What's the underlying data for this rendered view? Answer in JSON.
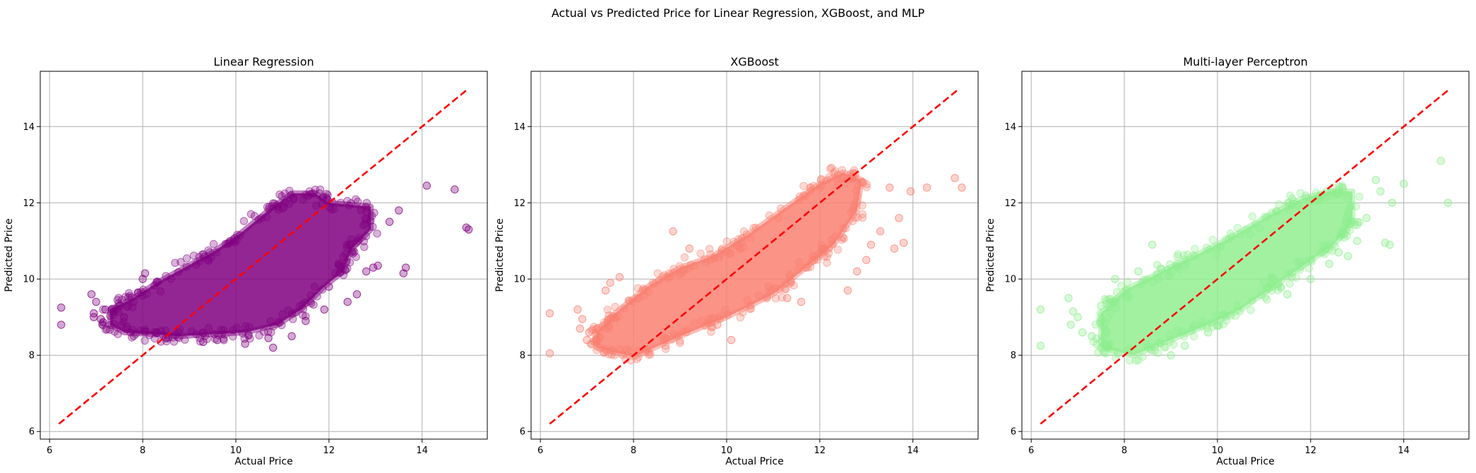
{
  "figure": {
    "suptitle": "Actual vs Predicted Price for Linear Regression, XGBoost, and MLP"
  },
  "chart_data": [
    {
      "type": "scatter",
      "title": "Linear Regression",
      "xlabel": "Actual Price",
      "ylabel": "Predicted Price",
      "xlim": [
        5.8,
        15.4
      ],
      "ylim": [
        5.8,
        15.45
      ],
      "xticks": [
        6,
        8,
        10,
        12,
        14
      ],
      "yticks": [
        6,
        8,
        10,
        12,
        14
      ],
      "grid": true,
      "point_color": "#800080",
      "reference_line": {
        "x": [
          6.2,
          15.0
        ],
        "y": [
          6.2,
          15.0
        ],
        "color": "#ff0000",
        "style": "dashed"
      },
      "cloud": [
        [
          7.3,
          8.8
        ],
        [
          7.6,
          8.6
        ],
        [
          8.2,
          8.55
        ],
        [
          8.8,
          8.5
        ],
        [
          9.5,
          8.55
        ],
        [
          10.2,
          8.6
        ],
        [
          10.9,
          8.8
        ],
        [
          11.4,
          9.2
        ],
        [
          11.9,
          9.8
        ],
        [
          12.3,
          10.2
        ],
        [
          12.5,
          10.8
        ],
        [
          12.9,
          11.3
        ],
        [
          12.9,
          11.9
        ],
        [
          12.0,
          12.0
        ],
        [
          11.7,
          12.25
        ],
        [
          11.2,
          12.25
        ],
        [
          10.7,
          11.8
        ],
        [
          10.1,
          11.2
        ],
        [
          9.5,
          10.7
        ],
        [
          8.9,
          10.3
        ],
        [
          8.3,
          9.9
        ],
        [
          7.8,
          9.5
        ],
        [
          7.3,
          9.2
        ]
      ],
      "points": [
        [
          6.25,
          9.25
        ],
        [
          6.25,
          8.8
        ],
        [
          6.9,
          9.6
        ],
        [
          6.95,
          9.1
        ],
        [
          6.95,
          9.0
        ],
        [
          7.0,
          9.4
        ],
        [
          7.1,
          8.95
        ],
        [
          7.2,
          9.2
        ],
        [
          7.5,
          9.3
        ],
        [
          7.6,
          9.0
        ],
        [
          7.9,
          9.65
        ],
        [
          8.0,
          10.0
        ],
        [
          8.05,
          10.15
        ],
        [
          8.3,
          8.6
        ],
        [
          8.5,
          8.45
        ],
        [
          9.3,
          8.35
        ],
        [
          9.6,
          8.4
        ],
        [
          10.2,
          8.3
        ],
        [
          10.7,
          8.45
        ],
        [
          10.8,
          8.2
        ],
        [
          11.2,
          8.5
        ],
        [
          11.5,
          8.9
        ],
        [
          11.9,
          9.2
        ],
        [
          12.0,
          9.8
        ],
        [
          12.4,
          9.4
        ],
        [
          12.6,
          9.6
        ],
        [
          12.8,
          10.2
        ],
        [
          12.95,
          10.3
        ],
        [
          13.05,
          10.35
        ],
        [
          13.3,
          11.5
        ],
        [
          13.5,
          11.8
        ],
        [
          13.6,
          10.15
        ],
        [
          13.65,
          10.3
        ],
        [
          14.1,
          12.45
        ],
        [
          14.7,
          12.35
        ],
        [
          14.95,
          11.35
        ],
        [
          15.0,
          11.3
        ]
      ]
    },
    {
      "type": "scatter",
      "title": "XGBoost",
      "xlabel": "Actual Price",
      "ylabel": "Predicted Price",
      "xlim": [
        5.8,
        15.4
      ],
      "ylim": [
        5.8,
        15.45
      ],
      "xticks": [
        6,
        8,
        10,
        12,
        14
      ],
      "yticks": [
        6,
        8,
        10,
        12,
        14
      ],
      "grid": true,
      "point_color": "#fa8072",
      "reference_line": {
        "x": [
          6.2,
          15.0
        ],
        "y": [
          6.2,
          15.0
        ],
        "color": "#ff0000",
        "style": "dashed"
      },
      "cloud": [
        [
          7.2,
          8.2
        ],
        [
          8.0,
          7.95
        ],
        [
          9.0,
          8.5
        ],
        [
          10.0,
          9.0
        ],
        [
          11.0,
          9.6
        ],
        [
          11.8,
          10.4
        ],
        [
          12.3,
          10.9
        ],
        [
          12.8,
          11.8
        ],
        [
          12.9,
          12.6
        ],
        [
          12.5,
          12.8
        ],
        [
          12.0,
          12.5
        ],
        [
          11.3,
          11.9
        ],
        [
          10.5,
          11.2
        ],
        [
          9.7,
          10.6
        ],
        [
          9.0,
          10.3
        ],
        [
          8.3,
          9.8
        ],
        [
          7.6,
          9.1
        ],
        [
          7.2,
          8.6
        ]
      ],
      "points": [
        [
          6.2,
          9.1
        ],
        [
          6.2,
          8.05
        ],
        [
          6.8,
          9.2
        ],
        [
          6.85,
          8.7
        ],
        [
          6.9,
          8.95
        ],
        [
          7.0,
          8.4
        ],
        [
          7.05,
          8.6
        ],
        [
          7.2,
          8.35
        ],
        [
          7.4,
          9.7
        ],
        [
          7.5,
          9.9
        ],
        [
          7.7,
          10.05
        ],
        [
          8.85,
          11.25
        ],
        [
          9.2,
          10.8
        ],
        [
          9.8,
          8.8
        ],
        [
          10.1,
          8.4
        ],
        [
          10.9,
          9.8
        ],
        [
          11.3,
          9.5
        ],
        [
          11.6,
          9.4
        ],
        [
          11.7,
          10.3
        ],
        [
          12.6,
          9.7
        ],
        [
          12.8,
          10.2
        ],
        [
          13.0,
          10.5
        ],
        [
          13.1,
          10.9
        ],
        [
          13.3,
          11.25
        ],
        [
          13.5,
          12.4
        ],
        [
          13.6,
          10.8
        ],
        [
          13.7,
          11.6
        ],
        [
          13.8,
          10.95
        ],
        [
          13.95,
          12.3
        ],
        [
          14.3,
          12.4
        ],
        [
          14.9,
          12.65
        ],
        [
          15.05,
          12.4
        ]
      ]
    },
    {
      "type": "scatter",
      "title": "Multi-layer Perceptron",
      "xlabel": "Actual Price",
      "ylabel": "Predicted Price",
      "xlim": [
        5.8,
        15.4
      ],
      "ylim": [
        5.8,
        15.45
      ],
      "xticks": [
        6,
        8,
        10,
        12,
        14
      ],
      "yticks": [
        6,
        8,
        10,
        12,
        14
      ],
      "grid": true,
      "point_color": "#90ee90",
      "reference_line": {
        "x": [
          6.2,
          15.0
        ],
        "y": [
          6.2,
          15.0
        ],
        "color": "#ff0000",
        "style": "dashed"
      },
      "cloud": [
        [
          7.5,
          8.2
        ],
        [
          8.2,
          8.0
        ],
        [
          9.0,
          8.4
        ],
        [
          9.8,
          8.8
        ],
        [
          10.5,
          9.2
        ],
        [
          11.2,
          9.8
        ],
        [
          11.9,
          10.4
        ],
        [
          12.5,
          10.9
        ],
        [
          12.9,
          11.5
        ],
        [
          12.9,
          12.3
        ],
        [
          12.4,
          12.3
        ],
        [
          11.8,
          12.1
        ],
        [
          11.0,
          11.6
        ],
        [
          10.3,
          11.1
        ],
        [
          9.5,
          10.6
        ],
        [
          8.8,
          10.2
        ],
        [
          8.0,
          9.7
        ],
        [
          7.5,
          9.1
        ]
      ],
      "points": [
        [
          6.2,
          9.2
        ],
        [
          6.2,
          8.25
        ],
        [
          6.8,
          9.5
        ],
        [
          6.85,
          8.8
        ],
        [
          6.9,
          9.15
        ],
        [
          7.0,
          9.0
        ],
        [
          7.1,
          8.6
        ],
        [
          7.3,
          8.5
        ],
        [
          7.5,
          9.3
        ],
        [
          7.8,
          10.0
        ],
        [
          8.3,
          10.2
        ],
        [
          8.6,
          10.9
        ],
        [
          9.0,
          8.0
        ],
        [
          9.3,
          8.25
        ],
        [
          9.8,
          8.6
        ],
        [
          11.0,
          9.9
        ],
        [
          11.5,
          9.6
        ],
        [
          12.0,
          10.0
        ],
        [
          12.4,
          10.4
        ],
        [
          12.6,
          10.7
        ],
        [
          12.8,
          10.6
        ],
        [
          13.0,
          11.0
        ],
        [
          13.2,
          11.6
        ],
        [
          13.4,
          12.6
        ],
        [
          13.5,
          12.3
        ],
        [
          13.6,
          10.95
        ],
        [
          13.7,
          10.9
        ],
        [
          13.75,
          12.0
        ],
        [
          14.0,
          12.5
        ],
        [
          14.8,
          13.1
        ],
        [
          14.95,
          12.0
        ]
      ]
    }
  ]
}
